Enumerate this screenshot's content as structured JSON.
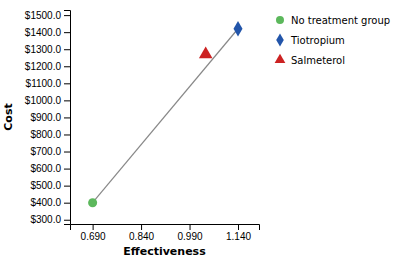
{
  "chart_data": {
    "type": "scatter",
    "xlabel": "Effectiveness",
    "ylabel": "Cost",
    "series": [
      {
        "name": "No treatment group",
        "type": "scatter",
        "marker": "circle",
        "color": "#5cb85c",
        "x": [
          0.69
        ],
        "values": [
          400.0
        ]
      },
      {
        "name": "Tiotropium",
        "type": "scatter",
        "marker": "diamond",
        "color": "#2255aa",
        "x": [
          1.14
        ],
        "values": [
          1420.0
        ]
      },
      {
        "name": "Salmeterol",
        "type": "scatter",
        "marker": "triangle",
        "color": "#cc2222",
        "x": [
          1.04
        ],
        "values": [
          1270.0
        ]
      },
      {
        "type": "line",
        "color": "#888888",
        "x": [
          0.69,
          1.14
        ],
        "values": [
          400.0,
          1420.0
        ]
      }
    ],
    "xlim": [
      0.62,
      1.205
    ],
    "ylim": [
      275.0,
      1530.0
    ],
    "xticks": [
      {
        "value": 0.69,
        "label": "0.690"
      },
      {
        "value": 0.84,
        "label": "0.840"
      },
      {
        "value": 0.99,
        "label": "0.990"
      },
      {
        "value": 1.14,
        "label": "1.140"
      }
    ],
    "yticks": [
      {
        "value": 300.0,
        "label": "$300.0"
      },
      {
        "value": 400.0,
        "label": "$400.0"
      },
      {
        "value": 500.0,
        "label": "$500.0"
      },
      {
        "value": 600.0,
        "label": "$600.0"
      },
      {
        "value": 700.0,
        "label": "$700.0"
      },
      {
        "value": 800.0,
        "label": "$800.0"
      },
      {
        "value": 900.0,
        "label": "$900.0"
      },
      {
        "value": 1000.0,
        "label": "$1000.0"
      },
      {
        "value": 1100.0,
        "label": "$1100.0"
      },
      {
        "value": 1200.0,
        "label": "$1200.0"
      },
      {
        "value": 1300.0,
        "label": "$1300.0"
      },
      {
        "value": 1400.0,
        "label": "$1400.0"
      },
      {
        "value": 1500.0,
        "label": "$1500.0"
      }
    ],
    "grid": false,
    "legend": "right"
  }
}
